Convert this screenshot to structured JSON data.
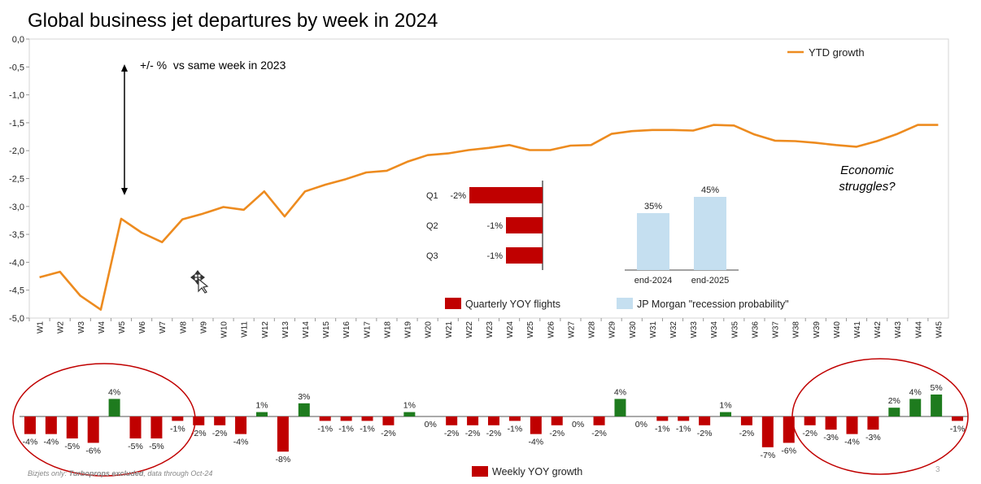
{
  "title": "Global business jet departures by week in 2024",
  "footnote_prefix": "Bizjets only: ",
  "footnote_bold": "Turboprops excluded",
  "footnote_suffix": ", data through Oct-24",
  "page_number": "3",
  "colors": {
    "line": "#ed8b1f",
    "negative_bar": "#c00000",
    "positive_bar": "#1e7b1e",
    "recession_bar": "#c5dff0",
    "ellipse": "#c00000",
    "title": "#000000"
  },
  "chart_data": [
    {
      "type": "line",
      "title": "Global business jet departures by week in 2024",
      "x": [
        "W1",
        "W2",
        "W3",
        "W4",
        "W5",
        "W6",
        "W7",
        "W8",
        "W9",
        "W10",
        "W11",
        "W12",
        "W13",
        "W14",
        "W15",
        "W16",
        "W17",
        "W18",
        "W19",
        "W20",
        "W21",
        "W22",
        "W23",
        "W24",
        "W25",
        "W26",
        "W27",
        "W28",
        "W29",
        "W30",
        "W31",
        "W32",
        "W33",
        "W34",
        "W35",
        "W36",
        "W37",
        "W38",
        "W39",
        "W40",
        "W41",
        "W42",
        "W43",
        "W44",
        "W45"
      ],
      "series": [
        {
          "name": "YTD growth",
          "values": [
            -4.27,
            -4.17,
            -4.6,
            -4.85,
            -3.22,
            -3.47,
            -3.64,
            -3.23,
            -3.13,
            -3.01,
            -3.06,
            -2.73,
            -3.18,
            -2.73,
            -2.61,
            -2.51,
            -2.39,
            -2.36,
            -2.2,
            -2.08,
            -2.05,
            -1.99,
            -1.95,
            -1.9,
            -1.99,
            -1.99,
            -1.91,
            -1.9,
            -1.7,
            -1.65,
            -1.63,
            -1.63,
            -1.64,
            -1.54,
            -1.55,
            -1.71,
            -1.82,
            -1.83,
            -1.86,
            -1.9,
            -1.93,
            -1.83,
            -1.7,
            -1.54,
            -1.54
          ]
        }
      ],
      "ylim": [
        -5.0,
        0.0
      ],
      "yticks": [
        "0,0",
        "-0,5",
        "-1,0",
        "-1,5",
        "-2,0",
        "-2,5",
        "-3,0",
        "-3,5",
        "-4,0",
        "-4,5",
        "-5,0"
      ],
      "legend": "top-right",
      "annotations": [
        "+/- %  vs same week in 2023",
        "Economic",
        "struggles?"
      ]
    },
    {
      "type": "bar",
      "orientation": "horizontal",
      "categories": [
        "Q1",
        "Q2",
        "Q3"
      ],
      "series": [
        {
          "name": "Quarterly YOY flights",
          "values": [
            -2,
            -1,
            -1
          ]
        }
      ],
      "data_labels": [
        "-2%",
        "-1%",
        "-1%"
      ]
    },
    {
      "type": "bar",
      "categories": [
        "end-2024",
        "end-2025"
      ],
      "series": [
        {
          "name": "JP Morgan \"recession probability\"",
          "values": [
            35,
            45
          ]
        }
      ],
      "data_labels": [
        "35%",
        "45%"
      ]
    },
    {
      "type": "bar",
      "categories": [
        "W1",
        "W2",
        "W3",
        "W4",
        "W5",
        "W6",
        "W7",
        "W8",
        "W9",
        "W10",
        "W11",
        "W12",
        "W13",
        "W14",
        "W15",
        "W16",
        "W17",
        "W18",
        "W19",
        "W20",
        "W21",
        "W22",
        "W23",
        "W24",
        "W25",
        "W26",
        "W27",
        "W28",
        "W29",
        "W30",
        "W31",
        "W32",
        "W33",
        "W34",
        "W35",
        "W36",
        "W37",
        "W38",
        "W39",
        "W40",
        "W41",
        "W42",
        "W43",
        "W44",
        "W45"
      ],
      "series": [
        {
          "name": "Weekly YOY growth",
          "values": [
            -4,
            -4,
            -5,
            -6,
            4,
            -5,
            -5,
            -1,
            -2,
            -2,
            -4,
            1,
            -8,
            3,
            -1,
            -1,
            -1,
            -2,
            1,
            0,
            -2,
            -2,
            -2,
            -1,
            -4,
            -2,
            0,
            -2,
            4,
            0,
            -1,
            -1,
            -2,
            1,
            -2,
            -7,
            -6,
            -2,
            -3,
            -4,
            -3,
            2,
            4,
            5,
            -1
          ]
        }
      ],
      "data_labels": [
        "-4%",
        "-4%",
        "-5%",
        "-6%",
        "4%",
        "-5%",
        "-5%",
        "-1%",
        "-2%",
        "-2%",
        "-4%",
        "1%",
        "-8%",
        "3%",
        "-1%",
        "-1%",
        "-1%",
        "-2%",
        "1%",
        "0%",
        "-2%",
        "-2%",
        "-2%",
        "-1%",
        "-4%",
        "-2%",
        "0%",
        "-2%",
        "4%",
        "0%",
        "-1%",
        "-1%",
        "-2%",
        "1%",
        "-2%",
        "-7%",
        "-6%",
        "-2%",
        "-3%",
        "-4%",
        "-3%",
        "2%",
        "4%",
        "5%",
        "-1%"
      ]
    }
  ]
}
